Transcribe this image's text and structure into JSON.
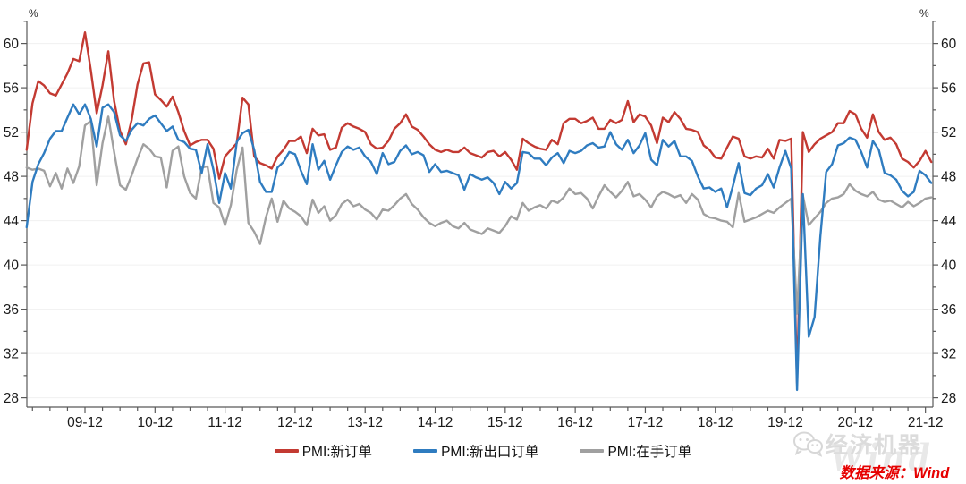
{
  "chart_data": {
    "type": "line",
    "title": "",
    "y_unit": "%",
    "x_monthly_range": [
      "2009-02",
      "2022-01"
    ],
    "ylim": [
      27.2,
      62.1
    ],
    "y_major_ticks": [
      28,
      32,
      36,
      40,
      44,
      48,
      52,
      56,
      60
    ],
    "y_minor_ticks": [
      30,
      34,
      38,
      42,
      46,
      50,
      54,
      58,
      62
    ],
    "x_tick_labels": [
      "09-12",
      "10-12",
      "11-12",
      "12-12",
      "13-12",
      "14-12",
      "15-12",
      "16-12",
      "17-12",
      "18-12",
      "19-12",
      "20-12",
      "21-12"
    ],
    "grid": "horizontal-light",
    "legend_position": "bottom-center",
    "series": [
      {
        "name": "PMI:新订单",
        "color": "#c33a32",
        "values": [
          50.4,
          54.6,
          56.6,
          56.2,
          55.5,
          55.3,
          56.3,
          57.3,
          58.6,
          58.4,
          61.0,
          57.6,
          53.7,
          56.2,
          59.3,
          54.8,
          52.1,
          50.9,
          53.1,
          56.3,
          58.2,
          58.3,
          55.4,
          54.9,
          54.3,
          55.2,
          53.8,
          52.1,
          50.8,
          51.1,
          51.3,
          51.3,
          50.5,
          47.8,
          49.8,
          50.4,
          51.0,
          55.1,
          54.5,
          49.8,
          49.2,
          49.0,
          48.7,
          49.8,
          50.4,
          51.2,
          51.2,
          51.6,
          50.1,
          52.3,
          51.7,
          51.8,
          50.4,
          50.6,
          52.4,
          52.8,
          52.5,
          52.3,
          52.0,
          50.9,
          50.5,
          50.6,
          51.2,
          52.3,
          52.8,
          53.6,
          52.5,
          52.2,
          51.6,
          50.9,
          50.4,
          50.2,
          50.4,
          50.2,
          50.2,
          50.6,
          50.1,
          49.9,
          49.7,
          50.2,
          50.3,
          49.8,
          50.2,
          49.5,
          48.6,
          51.4,
          51.0,
          50.7,
          50.5,
          50.4,
          51.3,
          50.9,
          52.8,
          53.2,
          53.2,
          52.8,
          53.0,
          53.3,
          52.3,
          52.3,
          53.1,
          52.8,
          53.1,
          54.8,
          52.9,
          53.6,
          53.4,
          52.6,
          51.0,
          53.3,
          52.9,
          53.8,
          53.2,
          52.3,
          52.2,
          52.0,
          50.8,
          50.4,
          49.7,
          49.6,
          50.6,
          51.6,
          51.4,
          49.8,
          49.6,
          49.8,
          49.7,
          50.5,
          49.6,
          51.3,
          51.2,
          51.4,
          29.3,
          52.0,
          50.2,
          50.9,
          51.4,
          51.7,
          52.0,
          52.8,
          52.8,
          53.9,
          53.6,
          52.3,
          51.5,
          53.6,
          52.0,
          51.3,
          51.5,
          50.9,
          49.6,
          49.3,
          48.8,
          49.4,
          50.3,
          49.3
        ]
      },
      {
        "name": "PMI:新出口订单",
        "color": "#2f7cc0",
        "values": [
          43.4,
          47.5,
          49.1,
          50.1,
          51.4,
          52.1,
          52.1,
          53.3,
          54.5,
          53.6,
          54.5,
          53.2,
          50.7,
          54.2,
          54.5,
          53.8,
          51.7,
          51.2,
          52.2,
          52.8,
          52.6,
          53.2,
          53.5,
          52.8,
          52.1,
          52.5,
          51.3,
          51.1,
          50.5,
          50.4,
          48.3,
          50.9,
          48.6,
          45.6,
          48.3,
          46.9,
          51.1,
          51.9,
          52.2,
          50.4,
          47.5,
          46.6,
          46.6,
          48.8,
          49.3,
          50.2,
          50.0,
          48.5,
          47.3,
          50.9,
          48.6,
          49.4,
          47.7,
          49.0,
          50.2,
          50.7,
          50.4,
          50.6,
          49.8,
          49.3,
          48.2,
          50.1,
          49.1,
          49.3,
          50.3,
          50.8,
          50.0,
          50.2,
          49.9,
          48.4,
          49.1,
          48.4,
          48.5,
          48.3,
          48.1,
          46.8,
          48.2,
          47.9,
          47.7,
          47.9,
          47.4,
          46.4,
          47.5,
          46.9,
          47.4,
          50.2,
          50.1,
          49.6,
          49.6,
          49.0,
          49.7,
          50.1,
          49.2,
          50.3,
          50.1,
          50.3,
          50.8,
          51.0,
          50.6,
          50.7,
          52.0,
          50.9,
          50.4,
          51.3,
          50.1,
          50.8,
          51.9,
          49.5,
          49.0,
          51.3,
          50.7,
          51.2,
          49.8,
          49.8,
          49.4,
          48.0,
          46.9,
          47.0,
          46.6,
          46.9,
          45.2,
          47.1,
          49.2,
          46.5,
          46.3,
          46.9,
          47.2,
          48.2,
          47.0,
          48.8,
          50.3,
          48.7,
          28.7,
          46.4,
          33.5,
          35.3,
          42.6,
          48.4,
          49.1,
          50.8,
          51.0,
          51.5,
          51.3,
          50.2,
          48.8,
          51.2,
          50.4,
          48.3,
          48.1,
          47.7,
          46.7,
          46.2,
          46.6,
          48.5,
          48.1,
          47.4
        ]
      },
      {
        "name": "PMI:在手订单",
        "color": "#a0a0a0",
        "values": [
          48.8,
          48.6,
          48.7,
          48.5,
          47.1,
          48.3,
          46.9,
          48.7,
          47.4,
          48.9,
          52.6,
          53.0,
          47.2,
          51.0,
          53.4,
          50.2,
          47.2,
          46.8,
          48.1,
          49.6,
          50.9,
          50.5,
          49.8,
          49.7,
          47.0,
          50.3,
          50.7,
          48.0,
          46.5,
          46.0,
          48.8,
          48.9,
          45.6,
          45.2,
          43.6,
          45.4,
          48.6,
          50.6,
          43.8,
          43.0,
          41.9,
          44.3,
          46.0,
          43.9,
          45.8,
          45.1,
          44.8,
          44.4,
          43.6,
          45.9,
          44.7,
          45.3,
          44.0,
          44.5,
          45.5,
          45.9,
          45.3,
          45.5,
          45.0,
          44.7,
          44.1,
          45.0,
          44.9,
          45.4,
          46.0,
          46.4,
          45.5,
          45.0,
          44.3,
          43.8,
          43.5,
          43.8,
          44.0,
          43.5,
          43.3,
          43.8,
          43.2,
          43.0,
          42.8,
          43.3,
          43.1,
          42.9,
          43.5,
          44.4,
          44.1,
          45.6,
          44.9,
          45.2,
          45.4,
          45.1,
          45.8,
          45.6,
          46.1,
          46.9,
          46.4,
          46.5,
          46.0,
          45.1,
          46.2,
          47.2,
          46.6,
          46.1,
          46.7,
          47.5,
          46.2,
          46.4,
          45.9,
          45.2,
          46.2,
          46.6,
          46.4,
          46.1,
          46.3,
          45.6,
          46.4,
          45.9,
          44.6,
          44.3,
          44.2,
          44.0,
          43.9,
          43.4,
          46.5,
          43.9,
          44.1,
          44.3,
          44.6,
          44.9,
          44.7,
          45.2,
          45.6,
          46.0,
          35.6,
          46.3,
          43.6,
          44.2,
          44.8,
          45.6,
          46.0,
          46.1,
          46.4,
          47.3,
          46.7,
          46.4,
          46.2,
          46.6,
          45.9,
          45.7,
          45.8,
          45.5,
          45.2,
          45.7,
          45.3,
          45.6,
          46.0,
          46.1
        ]
      }
    ],
    "draw_order": [
      0,
      2,
      1
    ]
  },
  "annotations": {
    "source_text": "数据来源：Wind",
    "watermark_text": "经济机器",
    "watermark_background": "Wind"
  },
  "colors": {
    "new_orders_red": "#c33a32",
    "new_export_orders_blue": "#2f7cc0",
    "backlog_orders_gray": "#a0a0a0",
    "axis": "#595959",
    "tick_label": "#1a1a1a",
    "gridline": "#f0f0f0",
    "source_red": "#e60000",
    "watermark_gray": "#dcdcdc"
  }
}
